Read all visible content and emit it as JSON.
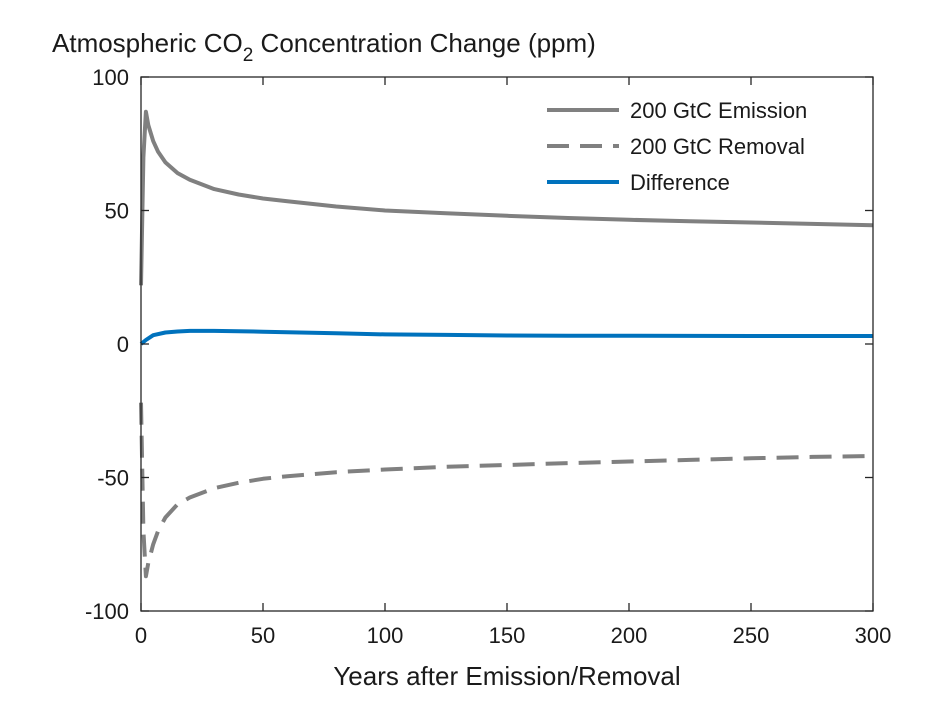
{
  "chart_data": {
    "type": "line",
    "title": {
      "prefix": "Atmospheric CO",
      "subscript": "2",
      "suffix": " Concentration Change (ppm)"
    },
    "xlabel": "Years after Emission/Removal",
    "ylabel": "",
    "xlim": [
      0,
      300
    ],
    "ylim": [
      -100,
      100
    ],
    "xticks": [
      0,
      50,
      100,
      150,
      200,
      250,
      300
    ],
    "yticks": [
      -100,
      -50,
      0,
      50,
      100
    ],
    "xtick_labels": [
      "0",
      "50",
      "100",
      "150",
      "200",
      "250",
      "300"
    ],
    "ytick_labels": [
      "-100",
      "-50",
      "0",
      "50",
      "100"
    ],
    "grid": false,
    "legend_position": "top-right",
    "series": [
      {
        "name": "200 GtC Emission",
        "color": "#808080",
        "style": "solid",
        "x": [
          0,
          1,
          2,
          3,
          5,
          7,
          10,
          15,
          20,
          30,
          40,
          50,
          60,
          80,
          100,
          125,
          150,
          175,
          200,
          225,
          250,
          275,
          300
        ],
        "y": [
          22,
          70,
          87,
          82,
          76,
          72,
          68,
          64,
          61.5,
          58,
          56,
          54.5,
          53.5,
          51.5,
          50,
          49,
          48,
          47.2,
          46.5,
          46,
          45.5,
          45,
          44.5
        ]
      },
      {
        "name": "200 GtC Removal",
        "color": "#808080",
        "style": "dashed",
        "x": [
          0,
          1,
          2,
          3,
          5,
          7,
          10,
          15,
          20,
          30,
          40,
          50,
          60,
          80,
          100,
          125,
          150,
          175,
          200,
          225,
          250,
          275,
          297
        ],
        "y": [
          -22,
          -70,
          -87,
          -82,
          -75,
          -70,
          -65,
          -60,
          -57.5,
          -54,
          -52,
          -50.5,
          -49.5,
          -48,
          -47,
          -46,
          -45.3,
          -44.6,
          -44,
          -43.4,
          -42.8,
          -42.3,
          -42
        ]
      },
      {
        "name": "Difference",
        "color": "#0072bd",
        "style": "solid",
        "x": [
          0,
          2,
          5,
          10,
          15,
          20,
          30,
          40,
          50,
          60,
          80,
          100,
          125,
          150,
          175,
          200,
          250,
          300
        ],
        "y": [
          0,
          1.5,
          3.3,
          4.3,
          4.7,
          4.9,
          4.9,
          4.8,
          4.6,
          4.4,
          4.0,
          3.6,
          3.4,
          3.2,
          3.1,
          3.1,
          3.0,
          3.0
        ]
      }
    ]
  }
}
